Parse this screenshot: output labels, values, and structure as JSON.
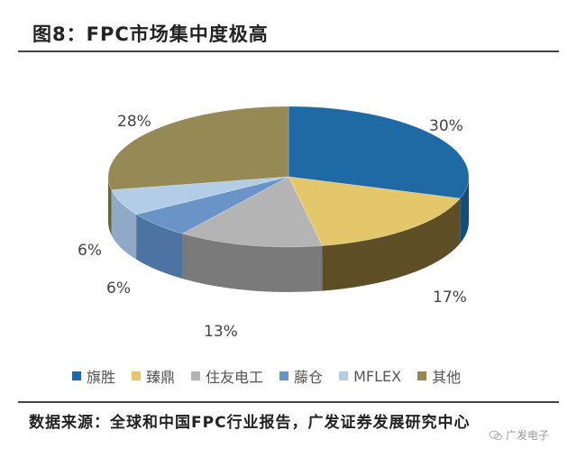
{
  "header": {
    "title": "图8：FPC市场集中度极高"
  },
  "chart_data": {
    "type": "pie",
    "title": "图8：FPC市场集中度极高",
    "style": "3d",
    "start_angle": "12 o'clock, clockwise",
    "categories": [
      "旗胜",
      "臻鼎",
      "住友电工",
      "藤仓",
      "MFLEX",
      "其他"
    ],
    "values": [
      30,
      17,
      13,
      6,
      6,
      28
    ],
    "unit": "%",
    "data_labels": [
      "30%",
      "17%",
      "13%",
      "6%",
      "6%",
      "28%"
    ],
    "colors": [
      "#1f6aa5",
      "#e5c76b",
      "#b4b4b4",
      "#6a94c8",
      "#b4cde6",
      "#958a55"
    ],
    "side_colors": [
      "#154c78",
      "#5e4e26",
      "#7a7a7a",
      "#4d73a3",
      "#8fa9c6",
      "#6b6238"
    ],
    "legend_position": "bottom"
  },
  "legend": {
    "items": [
      {
        "label": "旗胜",
        "color": "#1f6aa5"
      },
      {
        "label": "臻鼎",
        "color": "#e5c76b"
      },
      {
        "label": "住友电工",
        "color": "#b4b4b4"
      },
      {
        "label": "藤仓",
        "color": "#6a94c8"
      },
      {
        "label": "MFLEX",
        "color": "#b4cde6"
      },
      {
        "label": "其他",
        "color": "#958a55"
      }
    ]
  },
  "footer": {
    "source": "数据来源：全球和中国FPC行业报告，广发证券发展研究中心",
    "watermark": "广发电子"
  }
}
